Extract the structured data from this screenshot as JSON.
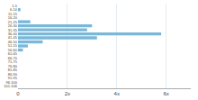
{
  "chart_data": {
    "type": "bar",
    "orientation": "horizontal",
    "categories": [
      "1-5",
      "6-10",
      "11-15",
      "16-20",
      "21-25",
      "26-30",
      "31-35",
      "36-40",
      "41-45",
      "46-50",
      "51-55",
      "56-60",
      "61-65",
      "66-70",
      "71-75",
      "76-80",
      "81-85",
      "86-90",
      "91-95",
      "96-100",
      "101-106"
    ],
    "values": [
      0,
      1,
      0,
      0,
      5,
      30,
      28,
      58,
      32,
      10,
      4,
      2,
      0,
      0,
      0,
      0,
      0,
      0,
      0,
      0,
      0
    ],
    "color": "#7ab8d9",
    "xlim": [
      0,
      70
    ],
    "xticks": [
      0,
      {
        "value": 20,
        "label": "2x"
      },
      {
        "value": 40,
        "label": "4x"
      },
      {
        "value": 60,
        "label": "6x"
      }
    ],
    "grid": true
  }
}
